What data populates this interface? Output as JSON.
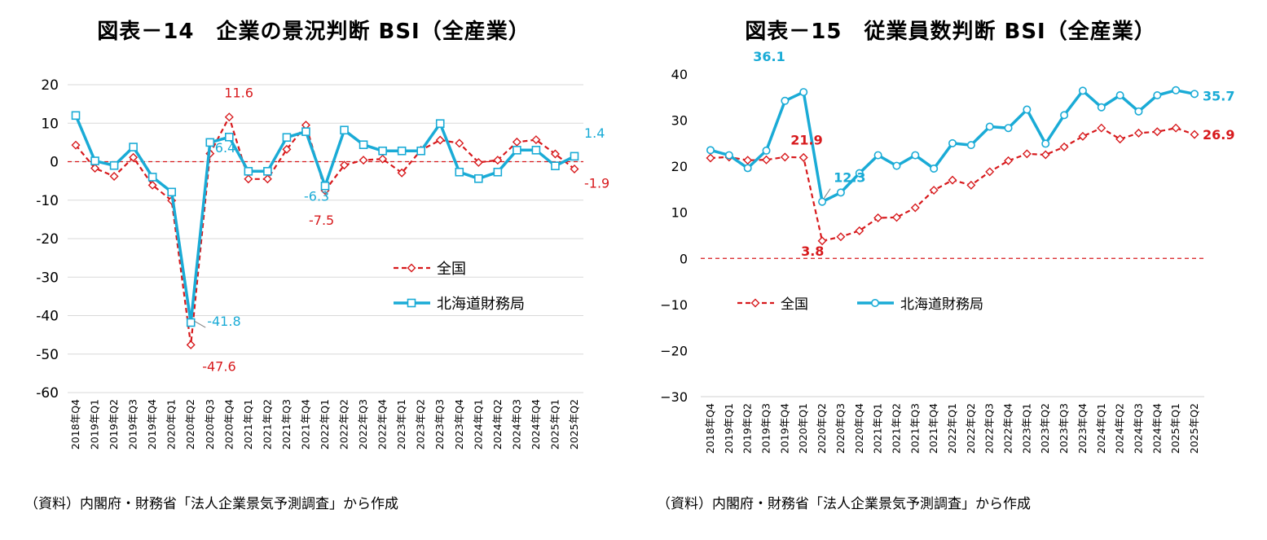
{
  "chart_data": [
    {
      "type": "line",
      "title": "図表－14　企業の景況判断 BSI（全産業）",
      "xlabel": "",
      "ylabel": "",
      "ylim": [
        -60,
        20
      ],
      "yticks": [
        20,
        10,
        0,
        -10,
        -20,
        -30,
        -40,
        -50,
        -60
      ],
      "grid": true,
      "legend": "center-right",
      "zero_line": "dashed-red",
      "categories": [
        "2018年Q4",
        "2019年Q1",
        "2019年Q2",
        "2019年Q3",
        "2019年Q4",
        "2020年Q1",
        "2020年Q2",
        "2020年Q3",
        "2020年Q4",
        "2021年Q1",
        "2021年Q2",
        "2021年Q3",
        "2021年Q4",
        "2022年Q1",
        "2022年Q2",
        "2022年Q3",
        "2022年Q4",
        "2023年Q1",
        "2023年Q2",
        "2023年Q3",
        "2023年Q4",
        "2024年Q1",
        "2024年Q2",
        "2024年Q3",
        "2024年Q4",
        "2025年Q1",
        "2025年Q2"
      ],
      "series": [
        {
          "name": "全国",
          "color": "#d7191c",
          "style": "dashed",
          "marker": "diamond",
          "values": [
            4.3,
            -1.7,
            -3.8,
            1.1,
            -6.1,
            -10.1,
            -47.6,
            2.1,
            11.6,
            -4.5,
            -4.5,
            3.2,
            9.5,
            -7.5,
            -0.9,
            0.4,
            0.7,
            -2.9,
            3.0,
            5.6,
            4.8,
            -0.2,
            0.4,
            5.1,
            5.7,
            2.0,
            -1.9
          ]
        },
        {
          "name": "北海道財務局",
          "color": "#1aabd6",
          "style": "solid",
          "marker": "square",
          "values": [
            12.0,
            0.2,
            -1.0,
            3.8,
            -4.0,
            -7.9,
            -41.8,
            5.0,
            6.4,
            -2.5,
            -2.5,
            6.3,
            7.8,
            -6.3,
            8.2,
            4.4,
            2.8,
            2.8,
            2.8,
            9.9,
            -2.7,
            -4.4,
            -2.7,
            3.0,
            3.0,
            -1.1,
            1.4
          ]
        }
      ],
      "annotations": [
        {
          "text": "11.6",
          "color": "#d7191c"
        },
        {
          "text": "6.4",
          "color": "#1aabd6"
        },
        {
          "text": "-41.8",
          "color": "#1aabd6"
        },
        {
          "text": "-47.6",
          "color": "#d7191c"
        },
        {
          "text": "-6.3",
          "color": "#1aabd6"
        },
        {
          "text": "-7.5",
          "color": "#d7191c"
        },
        {
          "text": "1.4",
          "color": "#1aabd6"
        },
        {
          "text": "-1.9",
          "color": "#d7191c"
        }
      ],
      "source": "（資料）内閣府・財務省「法人企業景気予測調査」から作成"
    },
    {
      "type": "line",
      "title": "図表－15　従業員数判断 BSI（全産業）",
      "xlabel": "",
      "ylabel": "",
      "ylim": [
        -30,
        40
      ],
      "yticks": [
        40,
        30,
        20,
        10,
        0,
        -10,
        -20,
        -30
      ],
      "ytick_labels": [
        "40",
        "30",
        "20",
        "10",
        "0",
        "−10",
        "−20",
        "−30"
      ],
      "grid": false,
      "legend": "center-left",
      "zero_line": "dashed-red",
      "categories": [
        "2018年Q4",
        "2019年Q1",
        "2019年Q2",
        "2019年Q3",
        "2019年Q4",
        "2020年Q1",
        "2020年Q2",
        "2020年Q3",
        "2020年Q4",
        "2021年Q1",
        "2021年Q2",
        "2021年Q3",
        "2021年Q4",
        "2022年Q1",
        "2022年Q2",
        "2022年Q3",
        "2022年Q4",
        "2023年Q1",
        "2023年Q2",
        "2023年Q3",
        "2023年Q4",
        "2024年Q1",
        "2024年Q2",
        "2024年Q3",
        "2024年Q4",
        "2025年Q1",
        "2025年Q2"
      ],
      "series": [
        {
          "name": "全国",
          "color": "#d7191c",
          "style": "dashed",
          "marker": "diamond",
          "values": [
            21.8,
            22.0,
            21.3,
            21.4,
            22.0,
            21.9,
            3.8,
            4.7,
            6.0,
            8.8,
            8.9,
            11.0,
            14.8,
            17.0,
            15.9,
            18.8,
            21.2,
            22.7,
            22.5,
            24.2,
            26.5,
            28.3,
            25.9,
            27.2,
            27.5,
            28.3,
            26.9
          ]
        },
        {
          "name": "北海道財務局",
          "color": "#1aabd6",
          "style": "solid",
          "marker": "circle",
          "values": [
            23.5,
            22.4,
            19.6,
            23.4,
            34.2,
            36.1,
            12.3,
            14.3,
            18.5,
            22.4,
            20.1,
            22.4,
            19.5,
            25.0,
            24.6,
            28.6,
            28.3,
            32.3,
            24.9,
            31.1,
            36.4,
            32.8,
            35.4,
            31.9,
            35.4,
            36.5,
            35.7
          ]
        }
      ],
      "annotations": [
        {
          "text": "36.1",
          "color": "#1aabd6"
        },
        {
          "text": "21.9",
          "color": "#d7191c"
        },
        {
          "text": "12.3",
          "color": "#1aabd6"
        },
        {
          "text": "3.8",
          "color": "#d7191c"
        },
        {
          "text": "35.7",
          "color": "#1aabd6"
        },
        {
          "text": "26.9",
          "color": "#d7191c"
        }
      ],
      "source": "（資料）内閣府・財務省「法人企業景気予測調査」から作成"
    }
  ]
}
